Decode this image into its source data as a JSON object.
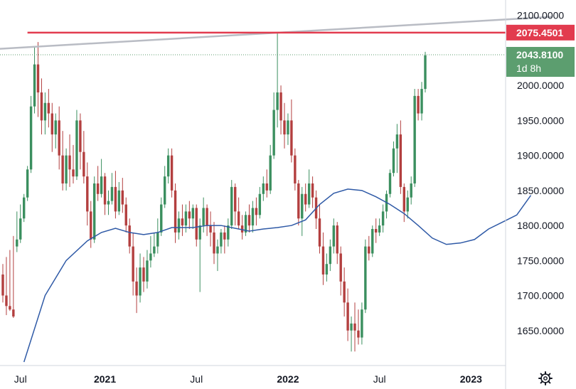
{
  "chart_data": {
    "type": "candlestick",
    "title": "",
    "xlabel": "",
    "ylabel": "",
    "ylim": [
      1600,
      2122
    ],
    "y_ticks": [
      "2100.0000",
      "2050.0000",
      "2000.0000",
      "1950.0000",
      "1900.0000",
      "1850.0000",
      "1800.0000",
      "1750.0000",
      "1700.0000",
      "1650.0000"
    ],
    "x_ticks": [
      "Jul",
      "2021",
      "Jul",
      "2022",
      "Jul",
      "2023"
    ],
    "x_tick_bold": [
      false,
      true,
      false,
      true,
      false,
      true
    ],
    "x_tick_week_index": [
      5,
      29,
      55,
      81,
      107,
      133
    ],
    "grid": false,
    "colors": {
      "up": "#26a69a",
      "up_body": "#3b8f5f",
      "down": "#b33f3f",
      "ma_line": "#2e59a6",
      "resistance": "#e23b4e",
      "trendline": "#b9bcc4",
      "price_tag": "#5c9e6f",
      "axis_text": "#131722"
    },
    "price_line": {
      "value": 2043.81,
      "label": "2043.8100",
      "countdown": "1d 8h"
    },
    "resistance": {
      "value": 2075.4501,
      "label": "2075.4501"
    },
    "trendline": {
      "start_week": -2,
      "start_value": 2052,
      "end_week": 156,
      "end_value": 2098
    },
    "moving_average": {
      "points": [
        [
          6,
          1605
        ],
        [
          12,
          1700
        ],
        [
          18,
          1750
        ],
        [
          24,
          1778
        ],
        [
          28,
          1790
        ],
        [
          32,
          1796
        ],
        [
          36,
          1790
        ],
        [
          40,
          1787
        ],
        [
          44,
          1790
        ],
        [
          48,
          1797
        ],
        [
          54,
          1797
        ],
        [
          58,
          1800
        ],
        [
          62,
          1800
        ],
        [
          66,
          1796
        ],
        [
          70,
          1792
        ],
        [
          74,
          1795
        ],
        [
          78,
          1797
        ],
        [
          82,
          1800
        ],
        [
          86,
          1808
        ],
        [
          90,
          1830
        ],
        [
          94,
          1846
        ],
        [
          98,
          1852
        ],
        [
          102,
          1850
        ],
        [
          106,
          1841
        ],
        [
          110,
          1830
        ],
        [
          114,
          1817
        ],
        [
          118,
          1800
        ],
        [
          122,
          1782
        ],
        [
          126,
          1773
        ],
        [
          130,
          1775
        ],
        [
          134,
          1780
        ],
        [
          138,
          1795
        ],
        [
          142,
          1805
        ],
        [
          146,
          1815
        ],
        [
          150,
          1843
        ]
      ]
    },
    "series": [
      {
        "name": "",
        "candles": [
          [
            1730,
            1745,
            1700,
            1690
          ],
          [
            1700,
            1755,
            1685,
            1672
          ],
          [
            1685,
            1765,
            1680,
            1678
          ],
          [
            1680,
            1785,
            1670,
            1668
          ],
          [
            1770,
            1820,
            1780,
            1762
          ],
          [
            1780,
            1830,
            1810,
            1775
          ],
          [
            1810,
            1845,
            1840,
            1805
          ],
          [
            1840,
            1885,
            1880,
            1835
          ],
          [
            1880,
            1985,
            1970,
            1875
          ],
          [
            1970,
            2055,
            2030,
            1960
          ],
          [
            2030,
            2062,
            1990,
            1955
          ],
          [
            1990,
            2010,
            1950,
            1930
          ],
          [
            1950,
            1990,
            1975,
            1930
          ],
          [
            1975,
            1995,
            1960,
            1940
          ],
          [
            1960,
            1975,
            1930,
            1905
          ],
          [
            1930,
            1960,
            1950,
            1910
          ],
          [
            1950,
            1970,
            1900,
            1880
          ],
          [
            1900,
            1935,
            1860,
            1850
          ],
          [
            1860,
            1910,
            1900,
            1850
          ],
          [
            1900,
            1930,
            1880,
            1855
          ],
          [
            1880,
            1915,
            1870,
            1860
          ],
          [
            1870,
            1965,
            1950,
            1865
          ],
          [
            1950,
            1960,
            1905,
            1880
          ],
          [
            1905,
            1935,
            1870,
            1860
          ],
          [
            1870,
            1890,
            1820,
            1800
          ],
          [
            1820,
            1835,
            1780,
            1768
          ],
          [
            1780,
            1870,
            1860,
            1775
          ],
          [
            1860,
            1885,
            1845,
            1835
          ],
          [
            1845,
            1895,
            1870,
            1840
          ],
          [
            1870,
            1875,
            1830,
            1815
          ],
          [
            1830,
            1850,
            1835,
            1815
          ],
          [
            1835,
            1875,
            1855,
            1830
          ],
          [
            1855,
            1878,
            1820,
            1810
          ],
          [
            1820,
            1862,
            1850,
            1815
          ],
          [
            1850,
            1868,
            1830,
            1818
          ],
          [
            1830,
            1840,
            1800,
            1790
          ],
          [
            1800,
            1810,
            1770,
            1760
          ],
          [
            1770,
            1790,
            1720,
            1700
          ],
          [
            1720,
            1740,
            1700,
            1675
          ],
          [
            1700,
            1760,
            1740,
            1690
          ],
          [
            1740,
            1755,
            1720,
            1705
          ],
          [
            1720,
            1765,
            1750,
            1710
          ],
          [
            1750,
            1785,
            1760,
            1740
          ],
          [
            1760,
            1790,
            1770,
            1755
          ],
          [
            1770,
            1810,
            1790,
            1760
          ],
          [
            1790,
            1840,
            1830,
            1785
          ],
          [
            1830,
            1885,
            1870,
            1825
          ],
          [
            1870,
            1910,
            1900,
            1860
          ],
          [
            1900,
            1910,
            1850,
            1840
          ],
          [
            1850,
            1860,
            1790,
            1775
          ],
          [
            1790,
            1820,
            1810,
            1780
          ],
          [
            1810,
            1830,
            1800,
            1785
          ],
          [
            1800,
            1830,
            1820,
            1790
          ],
          [
            1820,
            1835,
            1810,
            1795
          ],
          [
            1810,
            1830,
            1825,
            1795
          ],
          [
            1825,
            1830,
            1780,
            1770
          ],
          [
            1780,
            1810,
            1800,
            1705
          ],
          [
            1800,
            1840,
            1825,
            1790
          ],
          [
            1825,
            1830,
            1800,
            1785
          ],
          [
            1800,
            1820,
            1790,
            1770
          ],
          [
            1790,
            1805,
            1760,
            1745
          ],
          [
            1760,
            1780,
            1770,
            1735
          ],
          [
            1770,
            1795,
            1790,
            1760
          ],
          [
            1790,
            1800,
            1780,
            1760
          ],
          [
            1780,
            1810,
            1800,
            1770
          ],
          [
            1800,
            1865,
            1855,
            1795
          ],
          [
            1855,
            1860,
            1820,
            1800
          ],
          [
            1820,
            1840,
            1800,
            1795
          ],
          [
            1800,
            1815,
            1790,
            1780
          ],
          [
            1790,
            1820,
            1815,
            1785
          ],
          [
            1815,
            1830,
            1800,
            1790
          ],
          [
            1800,
            1835,
            1825,
            1790
          ],
          [
            1825,
            1840,
            1815,
            1800
          ],
          [
            1815,
            1855,
            1845,
            1810
          ],
          [
            1845,
            1870,
            1860,
            1835
          ],
          [
            1860,
            1880,
            1850,
            1840
          ],
          [
            1850,
            1915,
            1900,
            1845
          ],
          [
            1900,
            1990,
            1965,
            1895
          ],
          [
            1965,
            2075,
            1990,
            1940
          ],
          [
            1990,
            2000,
            1950,
            1930
          ],
          [
            1950,
            1975,
            1930,
            1910
          ],
          [
            1930,
            1960,
            1950,
            1915
          ],
          [
            1950,
            1980,
            1900,
            1890
          ],
          [
            1900,
            1910,
            1860,
            1850
          ],
          [
            1860,
            1865,
            1810,
            1800
          ],
          [
            1810,
            1855,
            1845,
            1785
          ],
          [
            1845,
            1860,
            1830,
            1820
          ],
          [
            1830,
            1880,
            1860,
            1825
          ],
          [
            1860,
            1870,
            1840,
            1825
          ],
          [
            1840,
            1850,
            1810,
            1795
          ],
          [
            1810,
            1830,
            1770,
            1760
          ],
          [
            1770,
            1790,
            1730,
            1715
          ],
          [
            1730,
            1760,
            1745,
            1720
          ],
          [
            1745,
            1780,
            1770,
            1735
          ],
          [
            1770,
            1810,
            1800,
            1760
          ],
          [
            1800,
            1805,
            1760,
            1745
          ],
          [
            1760,
            1770,
            1720,
            1700
          ],
          [
            1720,
            1740,
            1690,
            1670
          ],
          [
            1690,
            1710,
            1650,
            1635
          ],
          [
            1650,
            1670,
            1660,
            1620
          ],
          [
            1660,
            1690,
            1650,
            1620
          ],
          [
            1650,
            1680,
            1640,
            1630
          ],
          [
            1640,
            1690,
            1680,
            1630
          ],
          [
            1680,
            1780,
            1770,
            1675
          ],
          [
            1770,
            1785,
            1760,
            1750
          ],
          [
            1760,
            1800,
            1795,
            1755
          ],
          [
            1795,
            1810,
            1790,
            1775
          ],
          [
            1790,
            1810,
            1800,
            1785
          ],
          [
            1800,
            1830,
            1820,
            1790
          ],
          [
            1820,
            1850,
            1845,
            1810
          ],
          [
            1845,
            1880,
            1875,
            1840
          ],
          [
            1875,
            1920,
            1910,
            1870
          ],
          [
            1910,
            1945,
            1930,
            1875
          ],
          [
            1930,
            1950,
            1855,
            1845
          ],
          [
            1855,
            1860,
            1820,
            1805
          ],
          [
            1820,
            1850,
            1840,
            1810
          ],
          [
            1840,
            1870,
            1860,
            1830
          ],
          [
            1860,
            1995,
            1985,
            1855
          ],
          [
            1985,
            1995,
            1960,
            1950
          ],
          [
            1960,
            2005,
            1995,
            1950
          ],
          [
            1995,
            2048,
            2043,
            1990
          ]
        ]
      }
    ]
  }
}
